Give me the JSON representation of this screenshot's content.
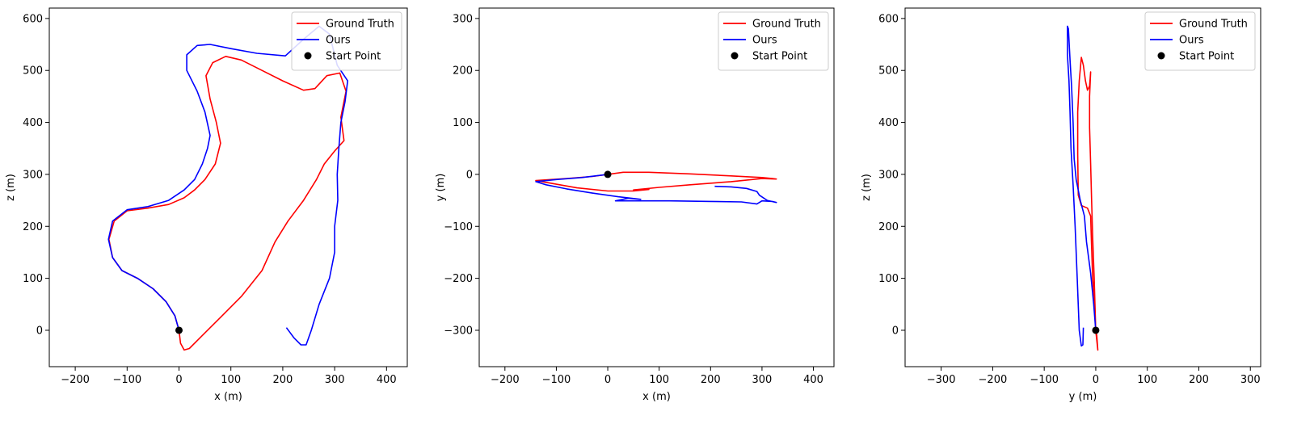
{
  "chart_data": [
    {
      "type": "line",
      "xlabel": "x (m)",
      "ylabel": "z (m)",
      "xlim": [
        -250,
        440
      ],
      "ylim": [
        -70,
        620
      ],
      "xticks": [
        -200,
        -100,
        0,
        100,
        200,
        300,
        400
      ],
      "yticks": [
        0,
        100,
        200,
        300,
        400,
        500,
        600
      ],
      "legend": {
        "position": "top-right",
        "entries": [
          "Ground Truth",
          "Ours",
          "Start Point"
        ]
      },
      "series": [
        {
          "name": "Ground Truth",
          "color": "#ff0000",
          "points": [
            [
              0,
              0
            ],
            [
              3,
              -25
            ],
            [
              10,
              -38
            ],
            [
              20,
              -35
            ],
            [
              40,
              -15
            ],
            [
              80,
              25
            ],
            [
              120,
              65
            ],
            [
              160,
              115
            ],
            [
              185,
              170
            ],
            [
              210,
              210
            ],
            [
              240,
              250
            ],
            [
              265,
              290
            ],
            [
              280,
              320
            ],
            [
              300,
              345
            ],
            [
              318,
              365
            ],
            [
              312,
              410
            ],
            [
              322,
              460
            ],
            [
              310,
              495
            ],
            [
              285,
              490
            ],
            [
              262,
              465
            ],
            [
              240,
              462
            ],
            [
              200,
              480
            ],
            [
              160,
              500
            ],
            [
              120,
              520
            ],
            [
              90,
              527
            ],
            [
              65,
              515
            ],
            [
              52,
              490
            ],
            [
              60,
              445
            ],
            [
              72,
              400
            ],
            [
              80,
              360
            ],
            [
              70,
              320
            ],
            [
              50,
              290
            ],
            [
              30,
              270
            ],
            [
              10,
              255
            ],
            [
              -20,
              242
            ],
            [
              -60,
              235
            ],
            [
              -100,
              230
            ],
            [
              -125,
              210
            ],
            [
              -135,
              175
            ],
            [
              -128,
              140
            ],
            [
              -110,
              115
            ],
            [
              -80,
              100
            ],
            [
              -50,
              80
            ],
            [
              -25,
              55
            ],
            [
              -8,
              28
            ],
            [
              0,
              0
            ]
          ]
        },
        {
          "name": "Ours",
          "color": "#0000ff",
          "points": [
            [
              0,
              0
            ],
            [
              -8,
              28
            ],
            [
              -25,
              55
            ],
            [
              -50,
              80
            ],
            [
              -80,
              100
            ],
            [
              -110,
              115
            ],
            [
              -128,
              140
            ],
            [
              -136,
              175
            ],
            [
              -128,
              210
            ],
            [
              -100,
              232
            ],
            [
              -60,
              238
            ],
            [
              -20,
              250
            ],
            [
              10,
              270
            ],
            [
              30,
              290
            ],
            [
              45,
              320
            ],
            [
              55,
              350
            ],
            [
              60,
              375
            ],
            [
              50,
              420
            ],
            [
              35,
              460
            ],
            [
              15,
              500
            ],
            [
              15,
              530
            ],
            [
              35,
              548
            ],
            [
              60,
              550
            ],
            [
              100,
              542
            ],
            [
              150,
              533
            ],
            [
              205,
              528
            ],
            [
              240,
              560
            ],
            [
              270,
              585
            ],
            [
              290,
              570
            ],
            [
              305,
              510
            ],
            [
              325,
              480
            ],
            [
              320,
              440
            ],
            [
              312,
              400
            ],
            [
              308,
              350
            ],
            [
              305,
              300
            ],
            [
              306,
              250
            ],
            [
              300,
              200
            ],
            [
              300,
              150
            ],
            [
              290,
              100
            ],
            [
              270,
              50
            ],
            [
              255,
              0
            ],
            [
              245,
              -28
            ],
            [
              235,
              -28
            ],
            [
              222,
              -15
            ],
            [
              207,
              5
            ]
          ]
        }
      ],
      "start_point": [
        0,
        0
      ]
    },
    {
      "type": "line",
      "xlabel": "x (m)",
      "ylabel": "y (m)",
      "xlim": [
        -250,
        440
      ],
      "ylim": [
        -370,
        320
      ],
      "xticks": [
        -200,
        -100,
        0,
        100,
        200,
        300,
        400
      ],
      "yticks": [
        -300,
        -200,
        -100,
        0,
        100,
        200,
        300
      ],
      "legend": {
        "position": "top-right",
        "entries": [
          "Ground Truth",
          "Ours",
          "Start Point"
        ]
      },
      "series": [
        {
          "name": "Ground Truth",
          "color": "#ff0000",
          "points": [
            [
              0,
              0
            ],
            [
              30,
              4
            ],
            [
              80,
              4
            ],
            [
              160,
              1
            ],
            [
              240,
              -3
            ],
            [
              300,
              -6
            ],
            [
              320,
              -8
            ],
            [
              328,
              -9
            ],
            [
              300,
              -8
            ],
            [
              240,
              -14
            ],
            [
              160,
              -20
            ],
            [
              100,
              -25
            ],
            [
              50,
              -30
            ],
            [
              80,
              -29
            ],
            [
              50,
              -32
            ],
            [
              0,
              -32
            ],
            [
              -60,
              -26
            ],
            [
              -140,
              -12
            ],
            [
              -80,
              -8
            ],
            [
              -30,
              -4
            ],
            [
              0,
              0
            ]
          ]
        },
        {
          "name": "Ours",
          "color": "#0000ff",
          "points": [
            [
              0,
              0
            ],
            [
              -50,
              -6
            ],
            [
              -100,
              -10
            ],
            [
              -140,
              -14
            ],
            [
              -120,
              -20
            ],
            [
              -80,
              -28
            ],
            [
              -30,
              -36
            ],
            [
              20,
              -43
            ],
            [
              64,
              -48
            ],
            [
              40,
              -46
            ],
            [
              15,
              -51
            ],
            [
              60,
              -51
            ],
            [
              120,
              -51
            ],
            [
              200,
              -52
            ],
            [
              260,
              -53
            ],
            [
              290,
              -57
            ],
            [
              300,
              -51
            ],
            [
              320,
              -52
            ],
            [
              328,
              -54
            ],
            [
              310,
              -50
            ],
            [
              295,
              -40
            ],
            [
              290,
              -33
            ],
            [
              270,
              -27
            ],
            [
              240,
              -24
            ],
            [
              208,
              -23
            ]
          ]
        }
      ],
      "start_point": [
        0,
        0
      ]
    },
    {
      "type": "line",
      "xlabel": "y (m)",
      "ylabel": "z (m)",
      "xlim": [
        -370,
        320
      ],
      "ylim": [
        -70,
        620
      ],
      "xticks": [
        -300,
        -200,
        -100,
        0,
        100,
        200,
        300
      ],
      "yticks": [
        0,
        100,
        200,
        300,
        400,
        500,
        600
      ],
      "legend": {
        "position": "top-right",
        "entries": [
          "Ground Truth",
          "Ours",
          "Start Point"
        ]
      },
      "series": [
        {
          "name": "Ground Truth",
          "color": "#ff0000",
          "points": [
            [
              0,
              0
            ],
            [
              4,
              -38
            ],
            [
              2,
              -10
            ],
            [
              0,
              0
            ],
            [
              -2,
              50
            ],
            [
              -6,
              100
            ],
            [
              -8,
              160
            ],
            [
              -10,
              220
            ],
            [
              -16,
              235
            ],
            [
              -28,
              240
            ],
            [
              -34,
              260
            ],
            [
              -35,
              340
            ],
            [
              -35,
              420
            ],
            [
              -32,
              480
            ],
            [
              -28,
              525
            ],
            [
              -24,
              510
            ],
            [
              -20,
              480
            ],
            [
              -16,
              462
            ],
            [
              -12,
              470
            ],
            [
              -10,
              497
            ],
            [
              -12,
              450
            ],
            [
              -12,
              390
            ],
            [
              -10,
              320
            ],
            [
              -8,
              250
            ],
            [
              -6,
              180
            ],
            [
              -3,
              100
            ],
            [
              0,
              0
            ]
          ]
        },
        {
          "name": "Ours",
          "color": "#0000ff",
          "points": [
            [
              0,
              0
            ],
            [
              -4,
              50
            ],
            [
              -10,
              110
            ],
            [
              -18,
              170
            ],
            [
              -22,
              220
            ],
            [
              -30,
              250
            ],
            [
              -38,
              290
            ],
            [
              -42,
              330
            ],
            [
              -44,
              400
            ],
            [
              -47,
              470
            ],
            [
              -50,
              520
            ],
            [
              -53,
              580
            ],
            [
              -55,
              585
            ],
            [
              -55,
              530
            ],
            [
              -52,
              480
            ],
            [
              -50,
              420
            ],
            [
              -48,
              350
            ],
            [
              -44,
              280
            ],
            [
              -40,
              200
            ],
            [
              -36,
              100
            ],
            [
              -32,
              0
            ],
            [
              -28,
              -30
            ],
            [
              -25,
              -28
            ],
            [
              -24,
              5
            ]
          ]
        }
      ],
      "start_point": [
        0,
        0
      ]
    }
  ]
}
